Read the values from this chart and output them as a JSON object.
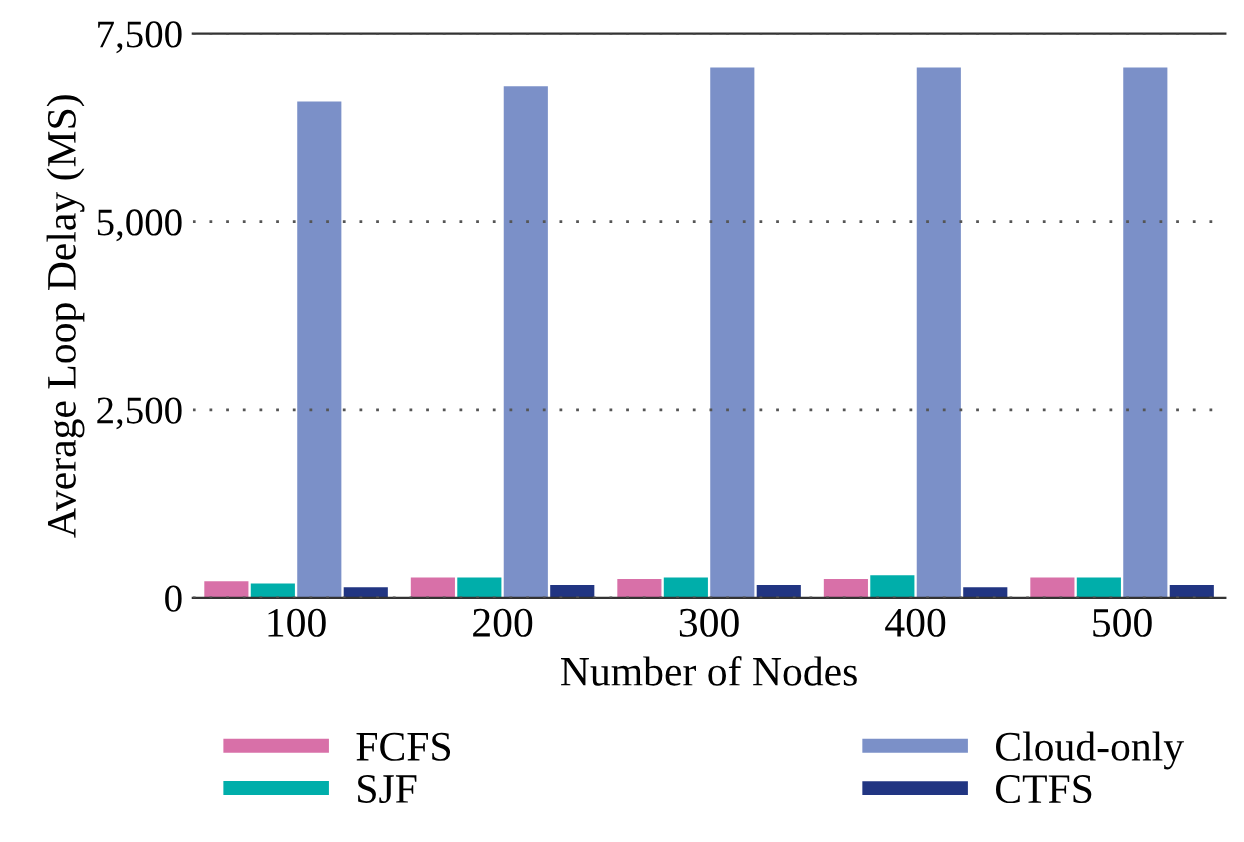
{
  "chart_data": {
    "type": "bar",
    "xlabel": "Number of Nodes",
    "ylabel": "Average Loop Delay (MS)",
    "categories": [
      "100",
      "200",
      "300",
      "400",
      "500"
    ],
    "series": [
      {
        "name": "FCFS",
        "color": "#d870a8",
        "values": [
          220,
          270,
          250,
          250,
          270
        ]
      },
      {
        "name": "SJF",
        "color": "#00aeaa",
        "values": [
          190,
          270,
          270,
          300,
          270
        ]
      },
      {
        "name": "Cloud-only",
        "color": "#7b90c8",
        "values": [
          6600,
          6800,
          7050,
          7050,
          7050
        ]
      },
      {
        "name": "CTFS",
        "color": "#213582",
        "values": [
          140,
          170,
          170,
          140,
          170
        ]
      }
    ],
    "ylim": [
      0,
      7500
    ],
    "yticks": [
      {
        "value": 0,
        "label": "0"
      },
      {
        "value": 2500,
        "label": "2,500"
      },
      {
        "value": 5000,
        "label": "5,000"
      },
      {
        "value": 7500,
        "label": "7,500"
      }
    ],
    "grid": "y",
    "legend": "bottom"
  }
}
